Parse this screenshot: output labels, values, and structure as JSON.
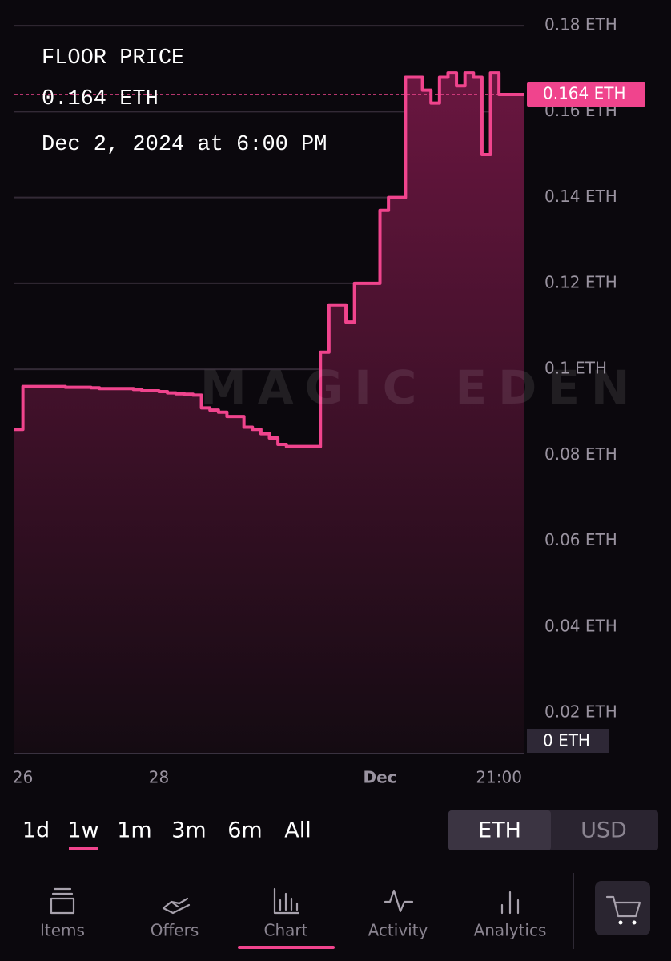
{
  "chart_data": {
    "type": "line",
    "title": "FLOOR PRICE",
    "subtitle": "Dec 2, 2024 at 6:00 PM",
    "watermark": "MAGIC EDEN",
    "current": {
      "value": 0.164,
      "label": "0.164 ETH"
    },
    "volume_label": "0 ETH",
    "categories": [
      null,
      "26",
      null,
      null,
      null,
      null,
      null,
      null,
      null,
      null,
      null,
      null,
      null,
      null,
      null,
      null,
      null,
      "28",
      null,
      null,
      null,
      null,
      null,
      null,
      null,
      null,
      null,
      null,
      null,
      null,
      null,
      null,
      null,
      null,
      null,
      null,
      null,
      null,
      null,
      null,
      null,
      null,
      null,
      "Dec",
      null,
      null,
      null,
      null,
      null,
      null,
      null,
      null,
      null,
      null,
      null,
      null,
      null,
      "21:00",
      null,
      null,
      null
    ],
    "series": [
      {
        "name": "Floor price",
        "color": "#f0448d",
        "values": [
          0.086,
          0.096,
          0.096,
          0.096,
          0.096,
          0.096,
          0.0958,
          0.0958,
          0.0958,
          0.0957,
          0.0955,
          0.0955,
          0.0955,
          0.0955,
          0.0953,
          0.095,
          0.095,
          0.0948,
          0.0945,
          0.0943,
          0.0942,
          0.094,
          0.091,
          0.0905,
          0.09,
          0.089,
          0.089,
          0.0865,
          0.086,
          0.085,
          0.084,
          0.0825,
          0.082,
          0.082,
          0.082,
          0.082,
          0.104,
          0.115,
          0.115,
          0.111,
          0.12,
          0.12,
          0.12,
          0.137,
          0.14,
          0.14,
          0.168,
          0.168,
          0.165,
          0.162,
          0.168,
          0.169,
          0.166,
          0.169,
          0.168,
          0.15,
          0.169,
          0.164,
          0.164,
          0.164,
          0.164
        ]
      }
    ],
    "ylim": [
      0.0107,
      0.1832
    ],
    "yticks": [
      {
        "value": 0.02,
        "label": "0.02 ETH"
      },
      {
        "value": 0.04,
        "label": "0.04 ETH"
      },
      {
        "value": 0.06,
        "label": "0.06 ETH"
      },
      {
        "value": 0.08,
        "label": "0.08 ETH"
      },
      {
        "value": 0.1,
        "label": "0.1 ETH"
      },
      {
        "value": 0.12,
        "label": "0.12 ETH"
      },
      {
        "value": 0.14,
        "label": "0.14 ETH"
      },
      {
        "value": 0.16,
        "label": "0.16 ETH"
      },
      {
        "value": 0.18,
        "label": "0.18 ETH"
      }
    ],
    "grid": true
  },
  "timeframes": {
    "options": [
      "1d",
      "1w",
      "1m",
      "3m",
      "6m",
      "All"
    ],
    "active": "1w"
  },
  "currency": {
    "options": [
      "ETH",
      "USD"
    ],
    "active": "ETH"
  },
  "nav": {
    "items": [
      "Items",
      "Offers",
      "Chart",
      "Activity",
      "Analytics"
    ],
    "active": "Chart"
  }
}
